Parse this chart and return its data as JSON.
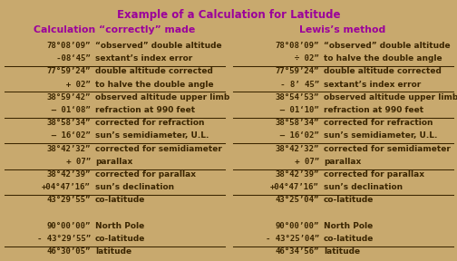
{
  "title": "Example of a Calculation for Latitude",
  "col1_header": "Calculation “correctly” made",
  "col2_header": "Lewis’s method",
  "background_color": "#c8a96e",
  "title_color": "#9b009b",
  "header_color": "#9b009b",
  "text_color": "#3a2500",
  "col1_rows": [
    [
      "78°08’09”",
      "“observed” double altitude",
      false
    ],
    [
      "   -08‘45”",
      "sextant’s index error",
      true
    ],
    [
      "77°59’24”",
      "double altitude corrected",
      false
    ],
    [
      "     + 02”",
      "to halve the double angle",
      true
    ],
    [
      "38°59’42”",
      "observed altitude upper limb",
      false
    ],
    [
      "  – 01‘08”",
      "refraction at 990 feet",
      true
    ],
    [
      "38°58’34”",
      "corrected for refraction",
      false
    ],
    [
      "  – 16‘02”",
      "sun’s semidiameter, U.L.",
      true
    ],
    [
      "38°42’32”",
      "corrected for semidiameter",
      false
    ],
    [
      "      + 07”",
      "parallax",
      true
    ],
    [
      "38°42’39”",
      "corrected for parallax",
      false
    ],
    [
      "+04°47’16”",
      "sun’s declination",
      true
    ],
    [
      "43°29’55”",
      "co-latitude",
      false
    ],
    [
      "",
      "",
      false
    ],
    [
      "90°00’00”",
      "North Pole",
      false
    ],
    [
      "- 43°29’55”",
      "co-latitude",
      true
    ],
    [
      "46°30’05”",
      "latitude",
      false
    ]
  ],
  "col2_rows": [
    [
      "78°08’09”",
      "“observed” double altitude",
      false
    ],
    [
      "     ÷ 02”",
      "to halve the double angle",
      true
    ],
    [
      "77°59’24”",
      "double altitude corrected",
      false
    ],
    [
      "   - 8’ 45”",
      "sextant’s index error",
      true
    ],
    [
      "38°54’53”",
      "observed altitude upper limb",
      false
    ],
    [
      "  – 01‘10”",
      "refraction at 990 feet",
      true
    ],
    [
      "38°58’34”",
      "corrected for refraction",
      false
    ],
    [
      "  – 16‘02”",
      "sun’s semidiameter, U.L.",
      true
    ],
    [
      "38°42’32”",
      "corrected for semidiameter",
      false
    ],
    [
      "      + 07”",
      "parallax",
      true
    ],
    [
      "38°42’39”",
      "corrected for parallax",
      false
    ],
    [
      "+04°47’16”",
      "sun’s declination",
      true
    ],
    [
      "43°25’04”",
      "co-latitude",
      false
    ],
    [
      "",
      "",
      false
    ],
    [
      "90°00’00”",
      "North Pole",
      false
    ],
    [
      "- 43°25’04”",
      "co-latitude",
      true
    ],
    [
      "46°34’56”",
      "latitude",
      false
    ]
  ]
}
